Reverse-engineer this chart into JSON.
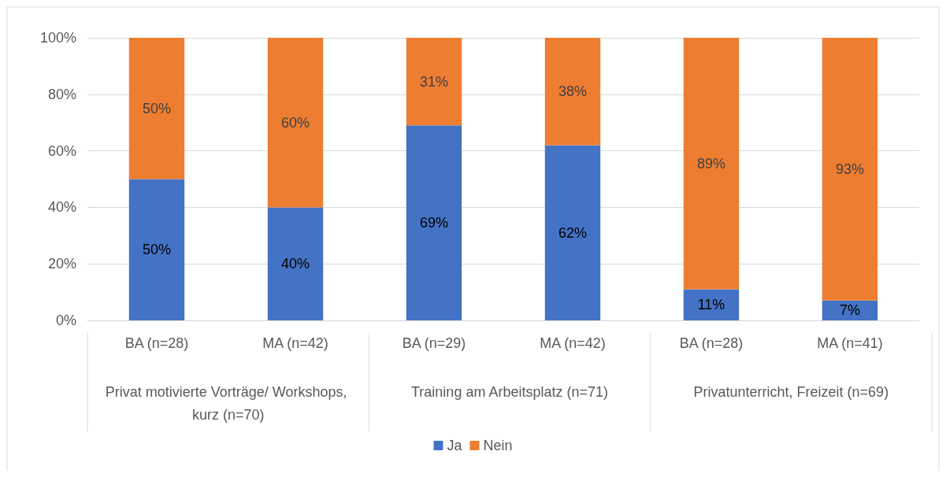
{
  "chart_data": {
    "type": "bar",
    "stacked": true,
    "categories": [
      "BA (n=28)",
      "MA (n=42)",
      "BA (n=29)",
      "MA (n=42)",
      "BA (n=28)",
      "MA (n=41)"
    ],
    "annotations": [
      "Privat motivierte Vorträge/ Workshops, kurz (n=70)",
      "Training am Arbeitsplatz (n=71)",
      "Privatunterricht, Freizeit (n=69)"
    ],
    "series": [
      {
        "name": "Ja",
        "color": "#4472c4",
        "values": [
          50,
          40,
          69,
          62,
          11,
          7
        ],
        "value_labels": [
          "50%",
          "40%",
          "69%",
          "62%",
          "11%",
          "7%"
        ]
      },
      {
        "name": "Nein",
        "color": "#ed7d31",
        "values": [
          50,
          60,
          31,
          38,
          89,
          93
        ],
        "value_labels": [
          "50%",
          "60%",
          "31%",
          "38%",
          "89%",
          "93%"
        ]
      }
    ],
    "ylim": [
      0,
      100
    ],
    "yticks": [
      {
        "value": 0,
        "label": "0%"
      },
      {
        "value": 20,
        "label": "20%"
      },
      {
        "value": 40,
        "label": "40%"
      },
      {
        "value": 60,
        "label": "60%"
      },
      {
        "value": 80,
        "label": "80%"
      },
      {
        "value": 100,
        "label": "100%"
      }
    ],
    "grid": "y",
    "legend": "bottom"
  }
}
